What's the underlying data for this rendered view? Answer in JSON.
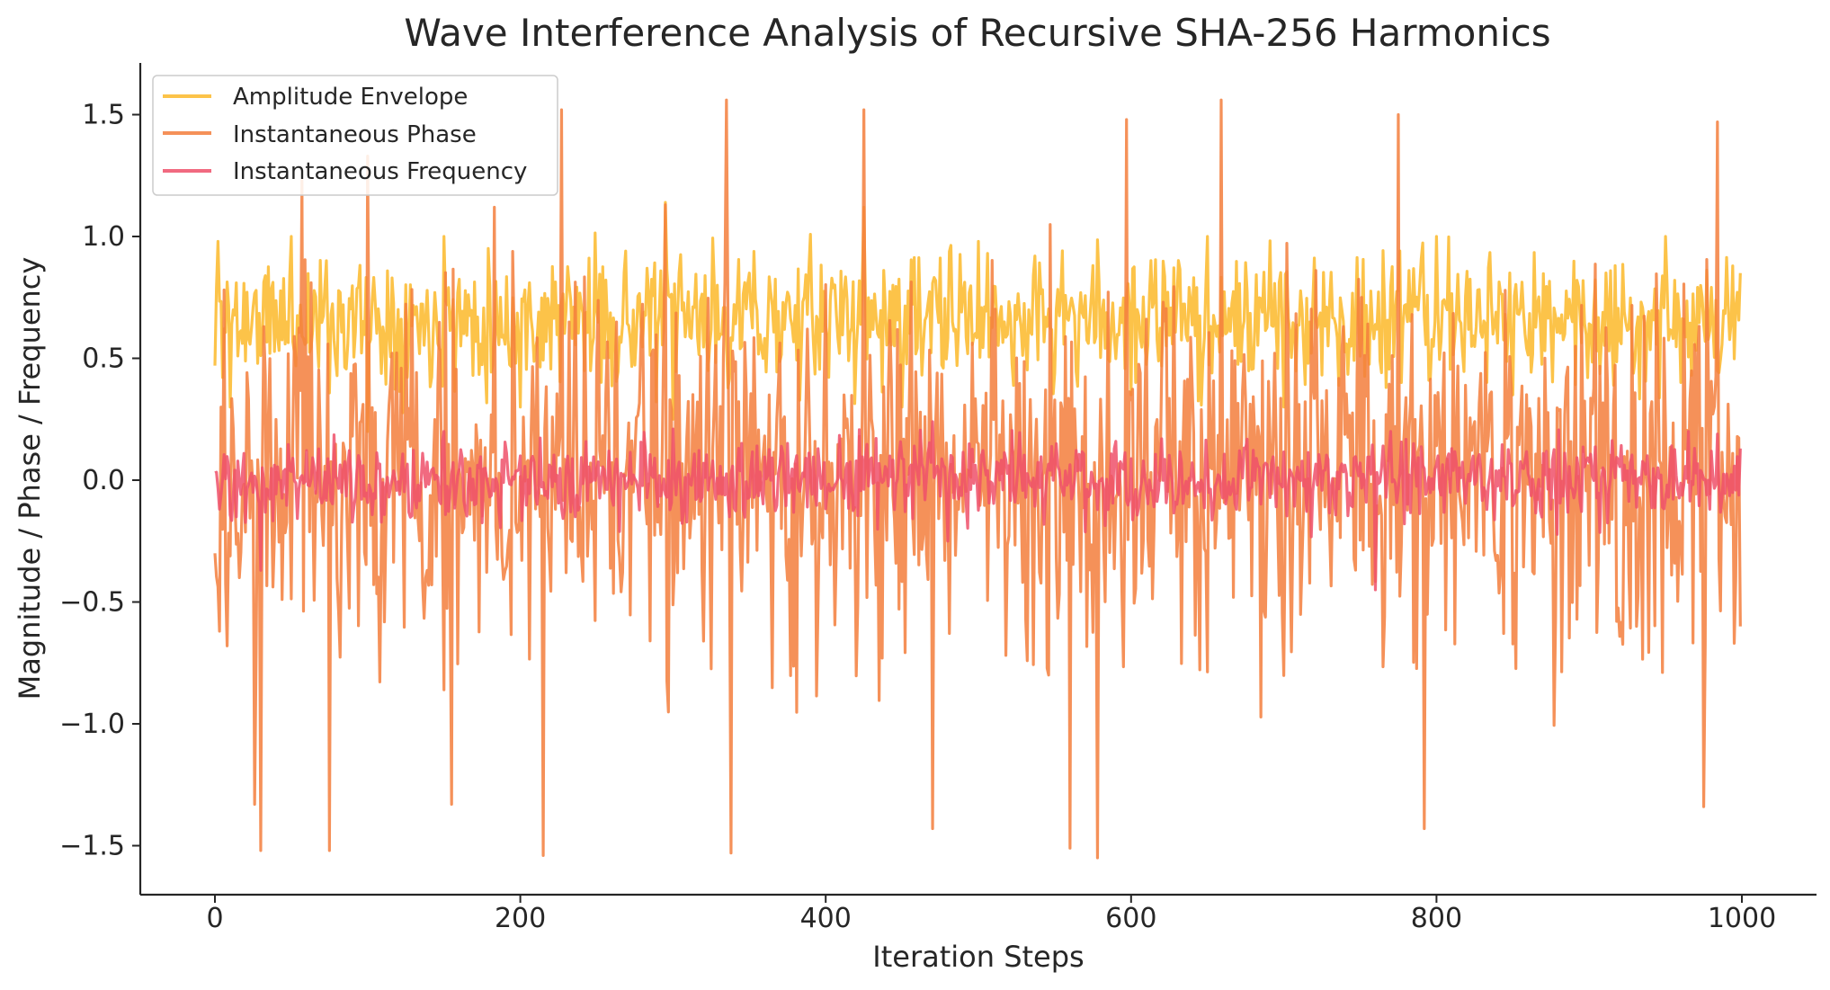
{
  "chart_data": {
    "type": "line",
    "title": "Wave Interference Analysis of Recursive SHA-256 Harmonics",
    "xlabel": "Iteration Steps",
    "ylabel": "Magnitude / Phase / Frequency",
    "xlim": [
      -50,
      1050
    ],
    "ylim": [
      -1.72,
      1.72
    ],
    "x_ticks": [
      0,
      200,
      400,
      600,
      800,
      1000
    ],
    "x_tick_labels": [
      "0",
      "200",
      "400",
      "600",
      "800",
      "1000"
    ],
    "y_ticks": [
      1.5,
      1.0,
      0.5,
      0.0,
      -0.5,
      -1.0,
      -1.5
    ],
    "y_tick_labels": [
      "1.5",
      "1.0",
      "0.5",
      "0.0",
      "−0.5",
      "−1.0",
      "−1.5"
    ],
    "grid": false,
    "legend_position": "top-left",
    "x_range": [
      0,
      999
    ],
    "n_points": 1000,
    "series": [
      {
        "name": "Amplitude Envelope",
        "color": "#fbb829",
        "center": 0.66,
        "spread": 0.3,
        "min": 0.2,
        "max": 1.14,
        "samples": [
          [
            0,
            0.47
          ],
          [
            2,
            0.98
          ],
          [
            10,
            0.3
          ],
          [
            50,
            1.0
          ],
          [
            100,
            0.2
          ],
          [
            150,
            1.0
          ],
          [
            200,
            0.3
          ],
          [
            295,
            1.14
          ],
          [
            300,
            0.25
          ],
          [
            350,
            0.85
          ],
          [
            425,
            1.12
          ],
          [
            450,
            0.3
          ],
          [
            500,
            0.98
          ],
          [
            600,
            0.35
          ],
          [
            650,
            1.0
          ],
          [
            700,
            0.3
          ],
          [
            800,
            1.0
          ],
          [
            850,
            0.35
          ],
          [
            950,
            1.0
          ],
          [
            999,
            0.85
          ]
        ]
      },
      {
        "name": "Instantaneous Phase",
        "color": "#f37e3c",
        "center": 0.0,
        "spread": 0.85,
        "min": -1.55,
        "max": 1.56,
        "samples": [
          [
            0,
            -0.3
          ],
          [
            4,
            0.3
          ],
          [
            8,
            -0.68
          ],
          [
            26,
            -1.33
          ],
          [
            30,
            -1.52
          ],
          [
            57,
            1.23
          ],
          [
            75,
            -1.52
          ],
          [
            100,
            1.33
          ],
          [
            155,
            -1.33
          ],
          [
            183,
            1.12
          ],
          [
            215,
            -1.54
          ],
          [
            227,
            1.52
          ],
          [
            295,
            1.13
          ],
          [
            335,
            1.56
          ],
          [
            338,
            -1.53
          ],
          [
            425,
            1.52
          ],
          [
            470,
            -1.43
          ],
          [
            560,
            -1.51
          ],
          [
            578,
            -1.55
          ],
          [
            597,
            1.48
          ],
          [
            659,
            1.56
          ],
          [
            775,
            1.5
          ],
          [
            792,
            -1.43
          ],
          [
            975,
            -1.34
          ],
          [
            984,
            1.47
          ],
          [
            999,
            -0.6
          ]
        ]
      },
      {
        "name": "Instantaneous Frequency",
        "color": "#ef506a",
        "center": 0.0,
        "spread": 0.18,
        "min": -0.47,
        "max": 0.24,
        "samples": [
          [
            0,
            0.03
          ],
          [
            30,
            0.22
          ],
          [
            30,
            -0.37
          ],
          [
            150,
            0.2
          ],
          [
            300,
            0.21
          ],
          [
            470,
            0.24
          ],
          [
            480,
            -0.25
          ],
          [
            620,
            0.17
          ],
          [
            760,
            -0.45
          ],
          [
            770,
            0.2
          ],
          [
            965,
            0.2
          ],
          [
            999,
            0.13
          ]
        ]
      }
    ]
  }
}
